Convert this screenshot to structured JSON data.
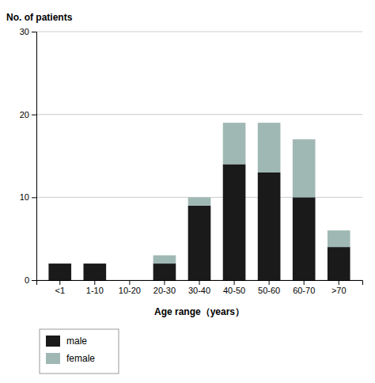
{
  "chart_data": {
    "type": "bar",
    "stacked": true,
    "categories": [
      "<1",
      "1-10",
      "10-20",
      "20-30",
      "30-40",
      "40-50",
      "50-60",
      "60-70",
      ">70"
    ],
    "series": [
      {
        "name": "male",
        "color": "#1a1a1a",
        "values": [
          2,
          2,
          0,
          2,
          9,
          14,
          13,
          10,
          4
        ]
      },
      {
        "name": "female",
        "color": "#a0b8b4",
        "values": [
          0,
          0,
          0,
          1,
          1,
          5,
          6,
          7,
          2
        ]
      }
    ],
    "xlabel": "Age range（years）",
    "ylabel": "No. of patients",
    "ylim": [
      0,
      30
    ],
    "yticks": [
      0,
      10,
      20,
      30
    ],
    "grid": true,
    "legend": "lower left"
  }
}
